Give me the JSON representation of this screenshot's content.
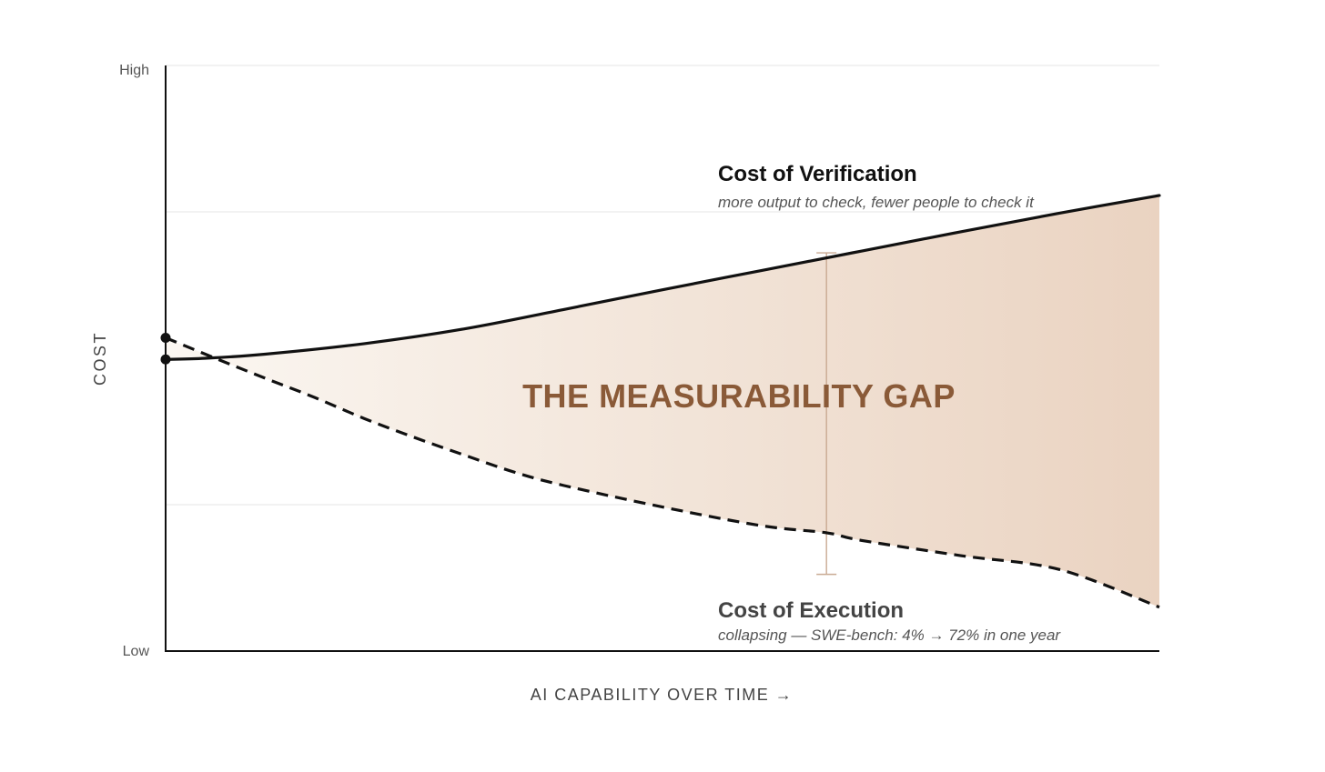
{
  "colors": {
    "background": "#ffffff",
    "axis": "#111111",
    "grid": "#e6e6e6",
    "verification_line": "#111111",
    "execution_line": "#111111",
    "gap_fill_start": "#fbf7f2",
    "gap_fill_end": "#ead3c1",
    "gap_title": "#8a5a38",
    "gap_bracket": "#c9aa93",
    "subtitle_text": "#555555",
    "label_text": "#444444"
  },
  "chart_data": {
    "type": "line",
    "title": "",
    "xlabel": "AI CAPABILITY OVER TIME →",
    "ylabel": "COST",
    "xlim": [
      0,
      100
    ],
    "ylim": [
      0,
      100
    ],
    "y_ticks": [
      {
        "value": 100,
        "label": "High"
      },
      {
        "value": 0,
        "label": "Low"
      }
    ],
    "gridlines": [
      100,
      75,
      50,
      25
    ],
    "series": [
      {
        "name": "Cost of Verification",
        "style": "solid",
        "subtitle": "more output to check, fewer people to check it",
        "x": [
          0,
          4,
          10,
          20,
          30,
          40,
          50,
          60,
          70,
          80,
          90,
          100
        ],
        "y": [
          49.8,
          50,
          50.7,
          52.5,
          55,
          58.3,
          61.7,
          65,
          68.3,
          71.6,
          74.8,
          77.8
        ]
      },
      {
        "name": "Cost of Execution",
        "style": "dashed",
        "subtitle": "collapsing — SWE-bench: 4% → 72% in one year",
        "x": [
          0,
          5,
          10,
          15,
          20,
          25,
          30,
          35,
          40,
          50,
          60,
          66.5,
          70,
          80,
          90,
          100
        ],
        "y": [
          53.5,
          50,
          46.6,
          43.3,
          39.7,
          36.5,
          33.5,
          30.6,
          28.3,
          24.6,
          21.4,
          20.2,
          18.9,
          16.3,
          13.9,
          7.5
        ]
      }
    ],
    "start_points": [
      {
        "x": 0,
        "y": 53.5
      },
      {
        "x": 0,
        "y": 49.8
      }
    ],
    "gap": {
      "label": "THE MEASURABILITY GAP",
      "bracket_x": 66.5,
      "bracket_top": 68,
      "bracket_bottom": 13.1
    }
  }
}
